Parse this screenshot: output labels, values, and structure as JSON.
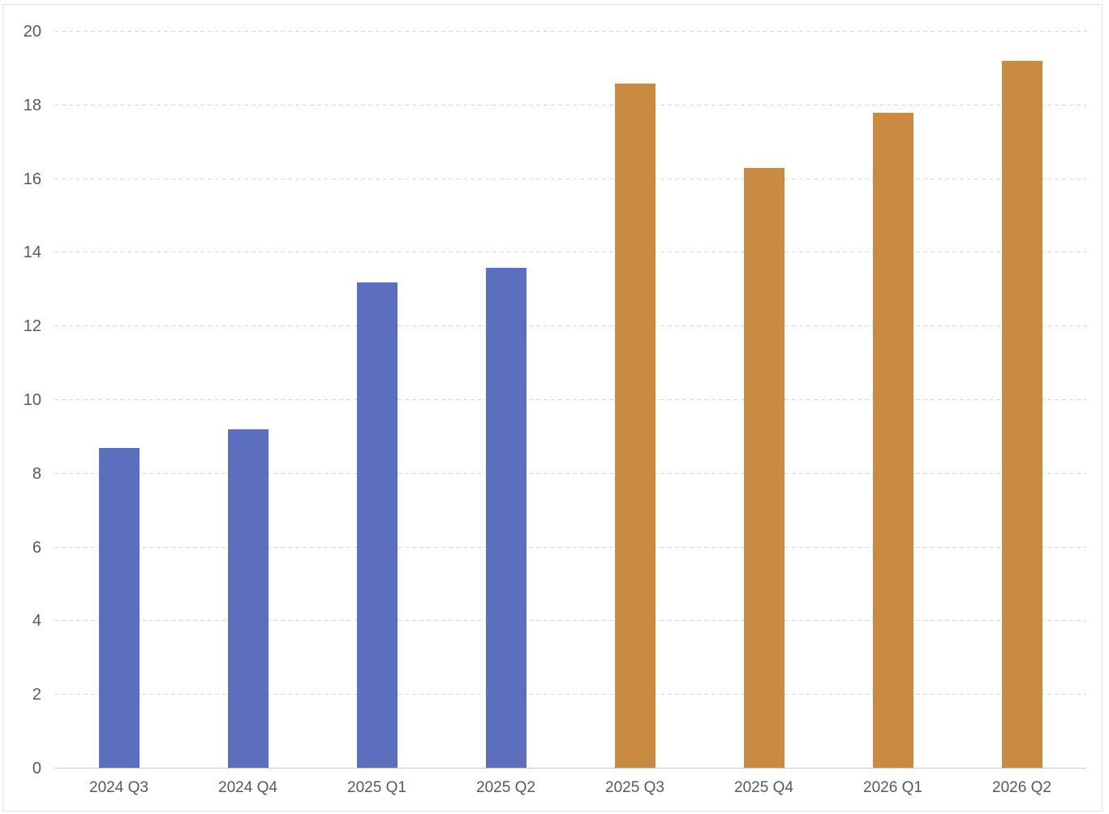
{
  "chart_data": {
    "type": "bar",
    "categories": [
      "2024 Q3",
      "2024 Q4",
      "2025 Q1",
      "2025 Q2",
      "2025 Q3",
      "2025 Q4",
      "2026 Q1",
      "2026 Q2"
    ],
    "values": [
      8.7,
      9.2,
      13.2,
      13.6,
      18.6,
      16.3,
      17.8,
      19.2
    ],
    "bar_colors": [
      "#5b6fbe",
      "#5b6fbe",
      "#5b6fbe",
      "#5b6fbe",
      "#c98a42",
      "#c98a42",
      "#c98a42",
      "#c98a42"
    ],
    "title": "",
    "xlabel": "",
    "ylabel": "",
    "ylim": [
      0,
      20
    ],
    "yticks": [
      0,
      2,
      4,
      6,
      8,
      10,
      12,
      14,
      16,
      18,
      20
    ],
    "grid": "horizontal-dashed",
    "legend": "none",
    "colors": {
      "series_blue": "#5b6fbe",
      "series_orange": "#c98a42",
      "gridline": "#d8d8d8",
      "axis_line": "#c9c9c9",
      "tick_label": "#595959",
      "background": "#ffffff",
      "frame_border": "#e4e4e4"
    }
  }
}
